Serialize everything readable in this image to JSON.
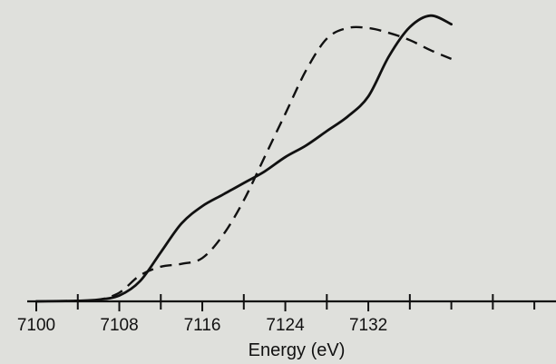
{
  "chart_data": {
    "type": "line",
    "title": "",
    "xlabel": "Energy (eV)",
    "ylabel": "",
    "xlim": [
      7100,
      7150
    ],
    "ylim": [
      0,
      1.0
    ],
    "major_ticks": [
      7100,
      7108,
      7116,
      7124,
      7132
    ],
    "tick_step_minor": 4,
    "grid": false,
    "legend": "none",
    "background_color": "#dfe0dc",
    "line_color": "#111111",
    "series": [
      {
        "style": "solid",
        "points": [
          [
            7100,
            0.0
          ],
          [
            7104,
            0.002
          ],
          [
            7106,
            0.006
          ],
          [
            7108,
            0.02
          ],
          [
            7110,
            0.07
          ],
          [
            7112,
            0.17
          ],
          [
            7114,
            0.27
          ],
          [
            7116,
            0.33
          ],
          [
            7118,
            0.37
          ],
          [
            7120,
            0.41
          ],
          [
            7122,
            0.45
          ],
          [
            7124,
            0.5
          ],
          [
            7126,
            0.54
          ],
          [
            7128,
            0.59
          ],
          [
            7130,
            0.64
          ],
          [
            7132,
            0.71
          ],
          [
            7134,
            0.85
          ],
          [
            7136,
            0.95
          ],
          [
            7138,
            0.99
          ],
          [
            7140,
            0.96
          ]
        ]
      },
      {
        "style": "dashed",
        "points": [
          [
            7100,
            0.0
          ],
          [
            7104,
            0.002
          ],
          [
            7106,
            0.005
          ],
          [
            7108,
            0.03
          ],
          [
            7110,
            0.09
          ],
          [
            7112,
            0.12
          ],
          [
            7114,
            0.13
          ],
          [
            7116,
            0.15
          ],
          [
            7118,
            0.23
          ],
          [
            7120,
            0.35
          ],
          [
            7122,
            0.5
          ],
          [
            7124,
            0.65
          ],
          [
            7126,
            0.8
          ],
          [
            7128,
            0.91
          ],
          [
            7130,
            0.947
          ],
          [
            7132,
            0.947
          ],
          [
            7134,
            0.93
          ],
          [
            7136,
            0.905
          ],
          [
            7138,
            0.87
          ],
          [
            7140,
            0.84
          ]
        ]
      }
    ]
  }
}
